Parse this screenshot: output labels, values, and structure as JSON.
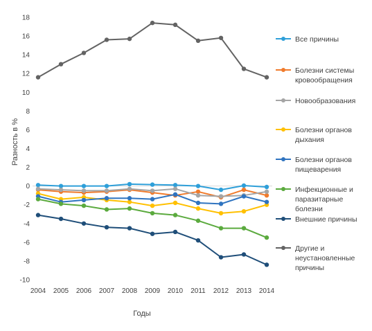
{
  "chart_data": {
    "type": "line",
    "xlabel": "Годы",
    "ylabel": "Разность в %",
    "ylim": [
      -10,
      18
    ],
    "yticks": [
      -10,
      -8,
      -6,
      -4,
      -2,
      0,
      2,
      4,
      6,
      8,
      10,
      12,
      14,
      16,
      18
    ],
    "categories": [
      "2004",
      "2005",
      "2006",
      "2007",
      "2008",
      "2009",
      "2010",
      "2011",
      "2012",
      "2013",
      "2014"
    ],
    "grid": false,
    "legend_position": "right",
    "series": [
      {
        "name": "Все причины",
        "color": "#2E9FD9",
        "values": [
          0.1,
          0.0,
          0.0,
          0.0,
          0.2,
          0.15,
          0.1,
          0.0,
          -0.4,
          0.05,
          -0.1
        ]
      },
      {
        "name": "Болезни системы кровообращения",
        "color": "#F07B2C",
        "values": [
          -0.4,
          -0.6,
          -0.7,
          -0.6,
          -0.4,
          -0.7,
          -1.0,
          -0.6,
          -1.2,
          -0.4,
          -1.0
        ]
      },
      {
        "name": "Новообразования",
        "color": "#A5A5A5",
        "values": [
          -0.3,
          -0.4,
          -0.5,
          -0.5,
          -0.3,
          -0.5,
          -0.3,
          -1.0,
          -1.1,
          -1.0,
          -0.6
        ]
      },
      {
        "name": "Болезни органов дыхания",
        "color": "#FFC000",
        "values": [
          -0.8,
          -1.4,
          -1.2,
          -1.5,
          -1.7,
          -2.1,
          -1.8,
          -2.4,
          -2.9,
          -2.7,
          -2.0
        ]
      },
      {
        "name": "Болезни органов пищеварения",
        "color": "#2F74C0",
        "values": [
          -1.1,
          -1.7,
          -1.5,
          -1.3,
          -1.3,
          -1.4,
          -0.9,
          -1.8,
          -1.9,
          -1.1,
          -1.7
        ]
      },
      {
        "name": "Инфекционные и паразитарные болезни",
        "color": "#5BAA3E",
        "values": [
          -1.4,
          -1.9,
          -2.1,
          -2.5,
          -2.4,
          -2.9,
          -3.1,
          -3.7,
          -4.5,
          -4.5,
          -5.5
        ]
      },
      {
        "name": "Внешние причины",
        "color": "#1F4E79",
        "values": [
          -3.1,
          -3.5,
          -4.0,
          -4.4,
          -4.5,
          -5.1,
          -4.9,
          -5.8,
          -7.6,
          -7.3,
          -8.4
        ]
      },
      {
        "name": "Другие и неустановленные причины",
        "color": "#636363",
        "values": [
          11.6,
          13.0,
          14.2,
          15.6,
          15.7,
          17.4,
          17.2,
          15.5,
          15.8,
          12.5,
          11.6
        ]
      }
    ]
  }
}
